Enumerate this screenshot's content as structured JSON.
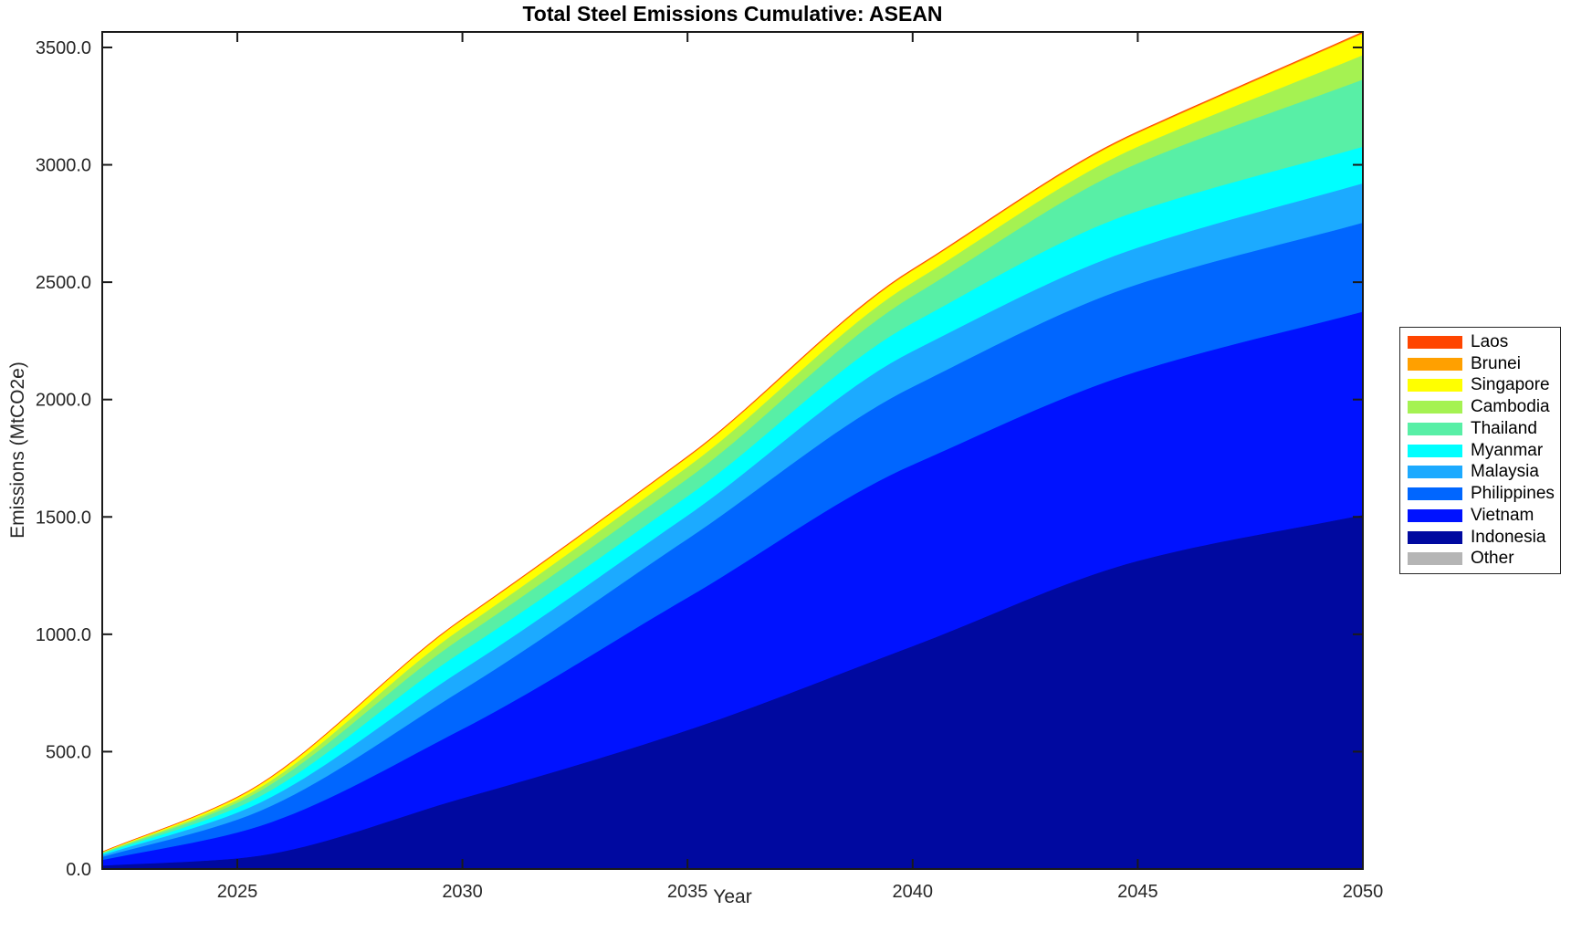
{
  "chart_data": {
    "type": "area",
    "stacked": true,
    "title": "Total Steel Emissions Cumulative: ASEAN",
    "xlabel": "Year",
    "ylabel": "Emissions (MtCO2e)",
    "xlim": [
      2022,
      2050
    ],
    "ylim": [
      0,
      3566
    ],
    "x_ticks": [
      2025,
      2030,
      2035,
      2040,
      2045,
      2050
    ],
    "x_tick_labels": [
      "2025",
      "2030",
      "2035",
      "2040",
      "2045",
      "2050"
    ],
    "y_ticks": [
      0,
      500,
      1000,
      1500,
      2000,
      2500,
      3000,
      3500
    ],
    "y_tick_labels": [
      "0.0",
      "500.0",
      "1000.0",
      "1500.0",
      "2000.0",
      "2500.0",
      "3000.0",
      "3500.0"
    ],
    "grid": false,
    "legend_position": "right",
    "axis_color": "#1a1a1a",
    "background_color": "#ffffff",
    "anchor_years": [
      2022,
      2025,
      2030,
      2035,
      2040,
      2045,
      2050
    ],
    "series": [
      {
        "name": "Other",
        "color": "#B5B5B5",
        "values": [
          0.5,
          1,
          2,
          2,
          3,
          3,
          3
        ]
      },
      {
        "name": "Indonesia",
        "color": "#0009A0",
        "values": [
          15,
          45,
          300,
          590,
          947,
          1310,
          1506
        ]
      },
      {
        "name": "Vietnam",
        "color": "#0012FF",
        "values": [
          24,
          110,
          295,
          565,
          773,
          808,
          866
        ]
      },
      {
        "name": "Philippines",
        "color": "#0066FF",
        "values": [
          13,
          55,
          167,
          250,
          332,
          371,
          379
        ]
      },
      {
        "name": "Malaysia",
        "color": "#1CAAFF",
        "values": [
          8,
          30,
          86,
          100,
          152,
          156,
          168
        ]
      },
      {
        "name": "Myanmar",
        "color": "#00FFFF",
        "values": [
          5,
          22,
          78,
          82,
          120,
          156,
          156
        ]
      },
      {
        "name": "Thailand",
        "color": "#58EFA6",
        "values": [
          3.5,
          20,
          60,
          75,
          115,
          203,
          286
        ]
      },
      {
        "name": "Cambodia",
        "color": "#A5F252",
        "values": [
          2,
          12,
          40,
          50,
          58,
          71,
          104
        ]
      },
      {
        "name": "Singapore",
        "color": "#FFFF00",
        "values": [
          2,
          10,
          35,
          40,
          51,
          58,
          92
        ]
      },
      {
        "name": "Brunei",
        "color": "#FFA000",
        "values": [
          0.3,
          1,
          2,
          2.5,
          3,
          3.5,
          4
        ]
      },
      {
        "name": "Laos",
        "color": "#FF4500",
        "values": [
          0.2,
          0.5,
          1,
          1.2,
          1.5,
          1.8,
          2
        ]
      }
    ]
  }
}
